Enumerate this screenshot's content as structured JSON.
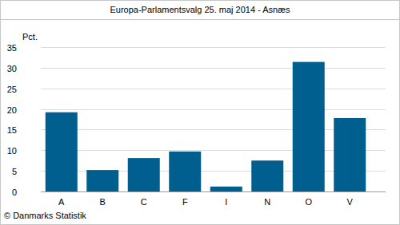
{
  "chart_data": {
    "type": "bar",
    "title": "Europa-Parlamentsvalg 25. maj 2014 - Asnæs",
    "y_label": "Pct.",
    "source": "© Danmarks Statistik",
    "categories": [
      "A",
      "B",
      "C",
      "F",
      "I",
      "N",
      "O",
      "V"
    ],
    "values": [
      19.2,
      5.2,
      8.1,
      9.7,
      1.2,
      7.5,
      31.4,
      17.8
    ],
    "color": "#005f8f",
    "ylim": [
      0,
      35
    ],
    "yticks": [
      0,
      5,
      10,
      15,
      20,
      25,
      30,
      35
    ],
    "grid": true
  }
}
